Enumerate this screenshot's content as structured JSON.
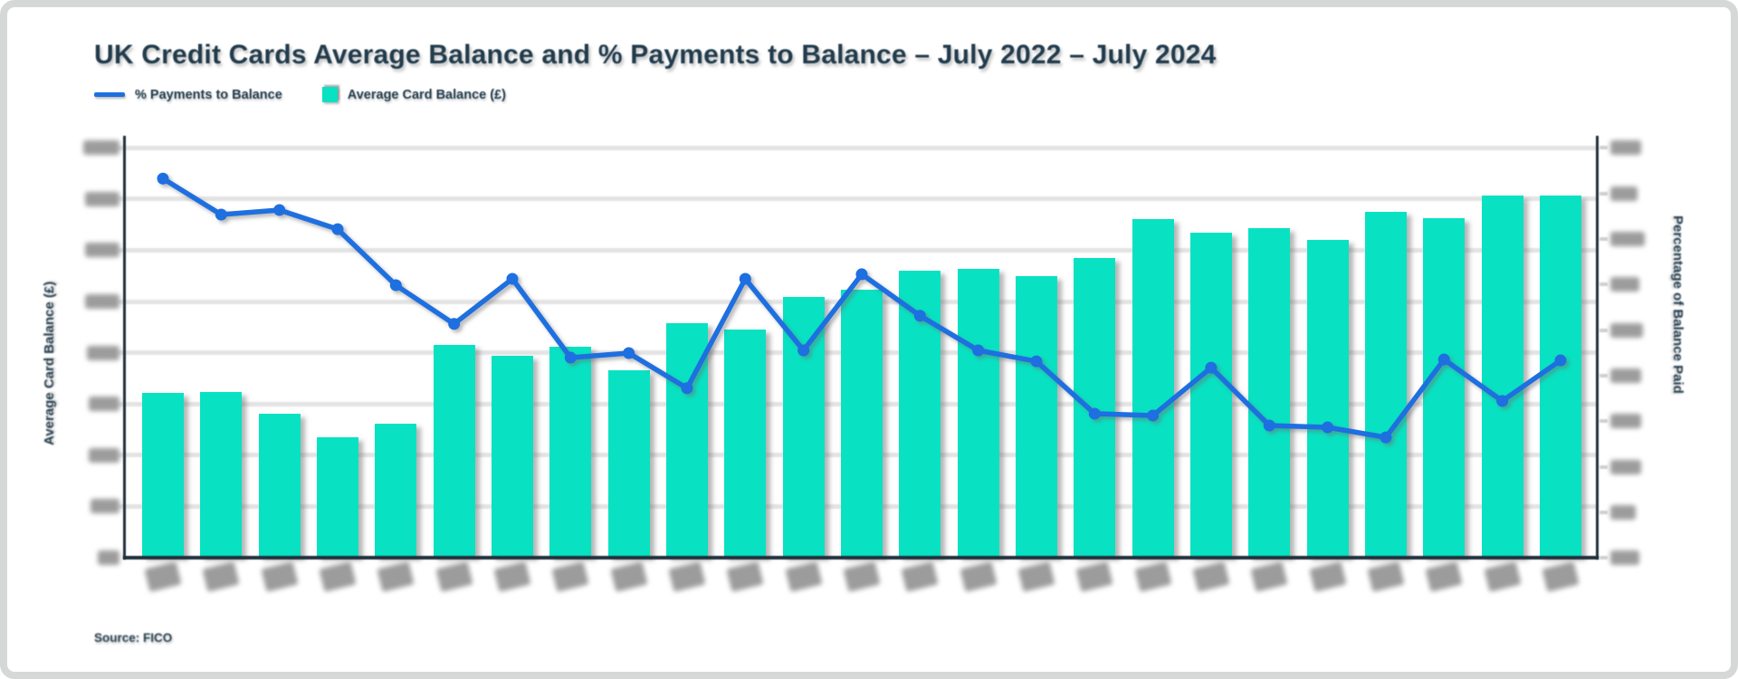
{
  "header": {
    "title": "UK Credit Cards Average Balance and % Payments to Balance – July 2022 – July 2024"
  },
  "legend": {
    "items": [
      {
        "label": "% Payments to Balance",
        "swatch": "line",
        "color": "#1e6fe0"
      },
      {
        "label": "Average Card Balance (£)",
        "swatch": "box",
        "color": "#08e2c3"
      }
    ]
  },
  "axes": {
    "left": {
      "title": "Average Card Balance (£)",
      "gridline_count": 9,
      "tick_labels": "blurred-illegible"
    },
    "right": {
      "title": "Percentage of Balance Paid",
      "tick_count": 10,
      "tick_labels": "blurred-illegible"
    },
    "x": {
      "tick_labels": "blurred-illegible"
    }
  },
  "footer": {
    "source": "Source: FICO"
  },
  "colors": {
    "bar": "#08e2c3",
    "line": "#1e6fe0",
    "text": "#223c4d",
    "gridline": "#e3e3e3",
    "axis_line": "#20303c",
    "blurred_label": "#9c9c9c",
    "frame_border": "#d6d7d7",
    "background": "#ffffff"
  },
  "chart_data": {
    "type": "combo",
    "title": "UK Credit Cards Average Balance and % Payments to Balance – July 2022 – July 2024",
    "categories": [
      "Jul-22",
      "Aug-22",
      "Sep-22",
      "Oct-22",
      "Nov-22",
      "Dec-22",
      "Jan-23",
      "Feb-23",
      "Mar-23",
      "Apr-23",
      "May-23",
      "Jun-23",
      "Jul-23",
      "Aug-23",
      "Sep-23",
      "Oct-23",
      "Nov-23",
      "Dec-23",
      "Jan-24",
      "Feb-24",
      "Mar-24",
      "Apr-24",
      "May-24",
      "Jun-24",
      "Jul-24"
    ],
    "grid": true,
    "legend_position": "top-left",
    "axis_note": "All numeric tick labels and month labels are blurred beyond legibility in the source image; values below are measured in axis-grid units from pixel positions.",
    "left_axis": {
      "label": "Average Card Balance (£)",
      "gridlines": 9,
      "unit": "1.0 = one horizontal gridline interval, 0 = baseline, 8 = top gridline"
    },
    "right_axis": {
      "label": "Percentage of Balance Paid",
      "ticks": 10,
      "unit": "1.0 = one right-axis tick interval, 0 = baseline, 9 = top tick"
    },
    "series": [
      {
        "name": "Average Card Balance (£)",
        "type": "bar",
        "axis": "left",
        "color": "#08e2c3",
        "values_gridline_units": [
          3.22,
          3.23,
          2.81,
          2.35,
          2.61,
          4.15,
          3.94,
          4.12,
          3.66,
          4.58,
          4.45,
          5.09,
          5.23,
          5.6,
          5.64,
          5.49,
          5.85,
          6.61,
          6.34,
          6.43,
          6.2,
          6.75,
          6.63,
          7.07,
          7.07
        ]
      },
      {
        "name": "% Payments to Balance",
        "type": "line",
        "axis": "right",
        "color": "#1e6fe0",
        "values_tick_units": [
          8.32,
          7.53,
          7.63,
          7.21,
          5.98,
          5.13,
          6.12,
          4.39,
          4.49,
          3.72,
          6.12,
          4.55,
          6.22,
          5.31,
          4.55,
          4.31,
          3.16,
          3.12,
          4.17,
          2.9,
          2.86,
          2.64,
          4.35,
          3.44,
          4.33
        ]
      }
    ]
  }
}
